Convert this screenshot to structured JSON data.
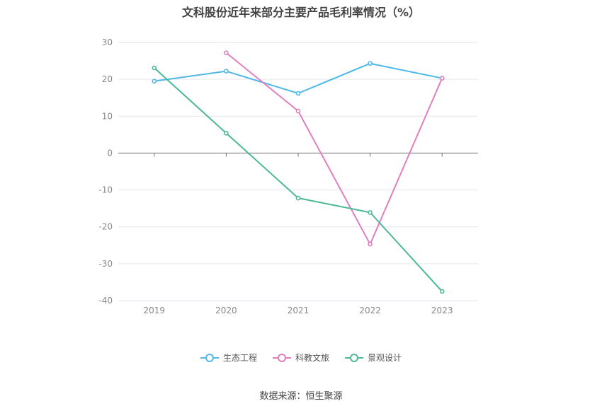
{
  "chart_data": {
    "type": "line",
    "title": "文科股份近年来部分主要产品毛利率情况（%）",
    "categories": [
      "2019",
      "2020",
      "2021",
      "2022",
      "2023"
    ],
    "ylim": [
      -40,
      30
    ],
    "yticks": [
      30,
      20,
      10,
      0,
      -10,
      -20,
      -30,
      -40
    ],
    "grid": true,
    "legend_position": "bottom",
    "series": [
      {
        "name": "生态工程",
        "color": "#4fb8e8",
        "values": [
          19.5,
          22.2,
          16.2,
          24.3,
          20.3
        ]
      },
      {
        "name": "科教文旅",
        "color": "#e07fbf",
        "values": [
          null,
          27.2,
          11.4,
          -24.7,
          20.3
        ]
      },
      {
        "name": "景观设计",
        "color": "#4db896",
        "values": [
          23.1,
          5.4,
          -12.2,
          -16.1,
          -37.5
        ]
      }
    ]
  },
  "footer": {
    "source": "数据来源：恒生聚源"
  }
}
